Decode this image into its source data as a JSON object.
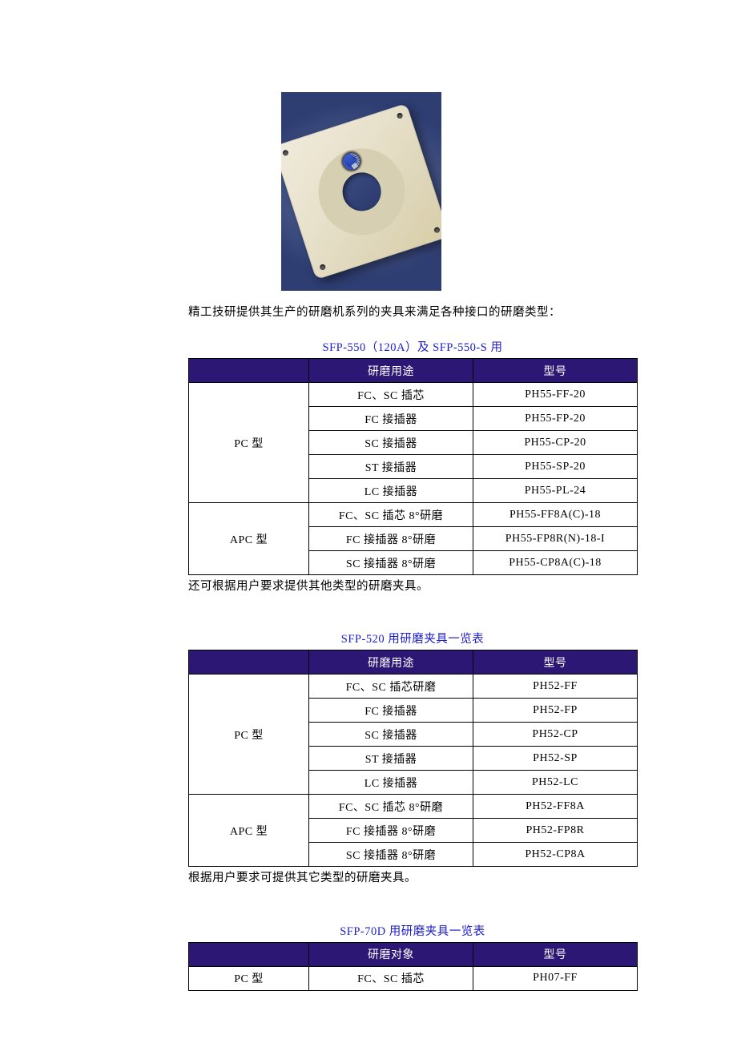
{
  "colors": {
    "header_bg": "#2c1775",
    "header_text": "#ffffff",
    "title_text": "#1c1cce",
    "body_text": "#000000",
    "border": "#000000",
    "page_bg": "#ffffff"
  },
  "image": {
    "bg_gradient": [
      "#6a7aaa",
      "#2e3d72"
    ],
    "plate_color": "#e6dfc8",
    "connector_color": "#2040a8",
    "connector_count": 20
  },
  "intro": "精工技研提供其生产的研磨机系列的夹具来满足各种接口的研磨类型：",
  "table1": {
    "title": "SFP-550（120A）及 SFP-550-S 用",
    "headers": {
      "cat": "",
      "use": "研磨用途",
      "model": "型号"
    },
    "groups": [
      {
        "label": "PC 型",
        "rows": [
          {
            "use": "FC、SC 插芯",
            "model": "PH55-FF-20"
          },
          {
            "use": "FC 接插器",
            "model": "PH55-FP-20"
          },
          {
            "use": "SC 接插器",
            "model": "PH55-CP-20"
          },
          {
            "use": "ST 接插器",
            "model": "PH55-SP-20"
          },
          {
            "use": "LC 接插器",
            "model": "PH55-PL-24"
          }
        ]
      },
      {
        "label": "APC 型",
        "rows": [
          {
            "use": "FC、SC 插芯 8°研磨",
            "model": "PH55-FF8A(C)-18"
          },
          {
            "use": "FC 接插器 8°研磨",
            "model": "PH55-FP8R(N)-18-I"
          },
          {
            "use": "SC 接插器 8°研磨",
            "model": "PH55-CP8A(C)-18"
          }
        ]
      }
    ],
    "footnote": "还可根据用户要求提供其他类型的研磨夹具。"
  },
  "table2": {
    "title": "SFP-520 用研磨夹具一览表",
    "headers": {
      "cat": "",
      "use": "研磨用途",
      "model": "型号"
    },
    "groups": [
      {
        "label": "PC 型",
        "rows": [
          {
            "use": "FC、SC 插芯研磨",
            "model": "PH52-FF"
          },
          {
            "use": "FC 接插器",
            "model": "PH52-FP"
          },
          {
            "use": "SC 接插器",
            "model": "PH52-CP"
          },
          {
            "use": "ST 接插器",
            "model": "PH52-SP"
          },
          {
            "use": "LC 接插器",
            "model": "PH52-LC"
          }
        ]
      },
      {
        "label": "APC 型",
        "rows": [
          {
            "use": "FC、SC 插芯 8°研磨",
            "model": "PH52-FF8A"
          },
          {
            "use": "FC 接插器 8°研磨",
            "model": "PH52-FP8R"
          },
          {
            "use": "SC 接插器 8°研磨",
            "model": "PH52-CP8A"
          }
        ]
      }
    ],
    "footnote": "根据用户要求可提供其它类型的研磨夹具。"
  },
  "table3": {
    "title": "SFP-70D 用研磨夹具一览表",
    "headers": {
      "cat": "",
      "use": "研磨对象",
      "model": "型号"
    },
    "groups": [
      {
        "label": "PC 型",
        "rows": [
          {
            "use": "FC、SC 插芯",
            "model": "PH07-FF"
          }
        ]
      }
    ]
  }
}
